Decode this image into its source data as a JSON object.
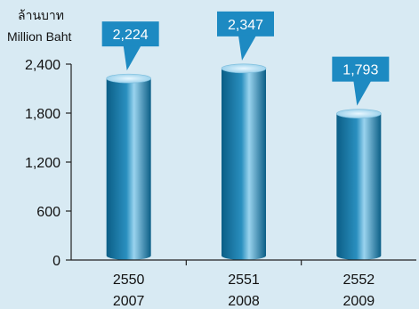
{
  "chart_data": {
    "type": "bar",
    "unit_label_thai": "ล้านบาท",
    "unit_label_en": "Million Baht",
    "categories": [
      {
        "top": "2550",
        "bottom": "2007"
      },
      {
        "top": "2551",
        "bottom": "2008"
      },
      {
        "top": "2552",
        "bottom": "2009"
      }
    ],
    "values": [
      2224,
      2347,
      1793
    ],
    "value_labels": [
      "2,224",
      "2,347",
      "1,793"
    ],
    "ylim": [
      0,
      2400
    ],
    "yticks": [
      0,
      600,
      1200,
      1800,
      2400
    ],
    "ytick_labels": [
      "0",
      "600",
      "1,200",
      "1,800",
      "2,400"
    ],
    "grid": false,
    "colors": {
      "background": "#d8eaf3",
      "bar_dark": "#0b5e86",
      "bar_mid": "#2a8fbf",
      "bar_light": "#9ad3ee",
      "label_box": "#1d8ac2",
      "axis": "#222222"
    }
  }
}
